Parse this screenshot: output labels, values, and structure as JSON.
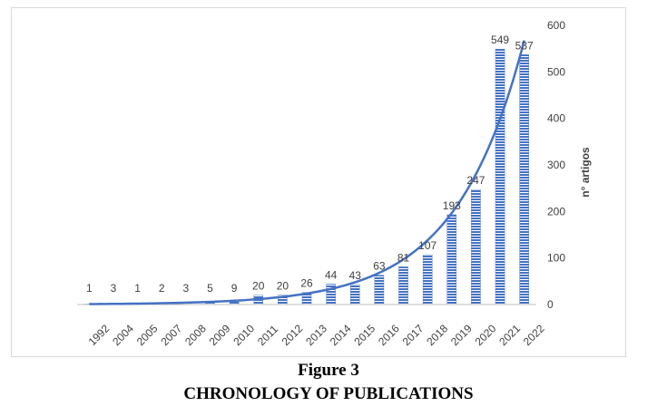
{
  "figure": {
    "label": "Figure 3",
    "title": "CHRONOLOGY OF PUBLICATIONS"
  },
  "colors": {
    "bar": "#4472c4",
    "trendline": "#4472c4",
    "text": "#404040",
    "axis": "#bfbfbf"
  },
  "chart_data": {
    "type": "bar",
    "title": "",
    "xlabel": "",
    "ylabel": "n° artigos",
    "y_axis_position": "right",
    "ylim": [
      0,
      600
    ],
    "yticks": [
      0,
      100,
      200,
      300,
      400,
      500,
      600
    ],
    "categories": [
      "1992",
      "2004",
      "2005",
      "2007",
      "2008",
      "2009",
      "2010",
      "2011",
      "2012",
      "2013",
      "2014",
      "2015",
      "2016",
      "2017",
      "2018",
      "2019",
      "2020",
      "2021",
      "2022"
    ],
    "values": [
      1,
      3,
      1,
      2,
      3,
      5,
      9,
      20,
      20,
      26,
      44,
      43,
      63,
      81,
      107,
      193,
      247,
      549,
      537
    ],
    "data_labels": true,
    "bar_pattern": "horizontal-stripes",
    "trendline": "exponential",
    "grid": false,
    "legend": "none"
  }
}
